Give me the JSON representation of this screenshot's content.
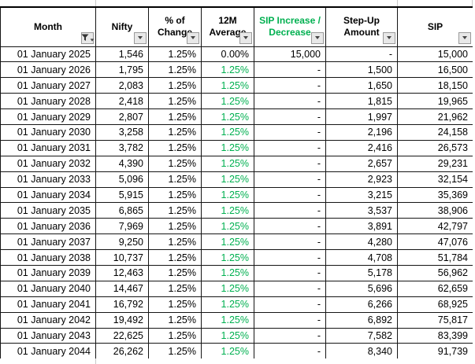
{
  "colors": {
    "yellow": "#FFFF00",
    "green": "#92D050",
    "good_bg": "#C6EFCE",
    "good_text": "#00B050",
    "accent_text": "#00B050",
    "grid_border": "#151515"
  },
  "table": {
    "columns": [
      {
        "id": "month",
        "label_lines": [
          "Month"
        ],
        "filtered": true,
        "accent": false
      },
      {
        "id": "nifty",
        "label_lines": [
          "Nifty"
        ],
        "filtered": false,
        "accent": false
      },
      {
        "id": "pct_change",
        "label_lines": [
          "% of",
          "Change"
        ],
        "filtered": false,
        "accent": false
      },
      {
        "id": "avg_12m",
        "label_lines": [
          "12M",
          "Average"
        ],
        "filtered": false,
        "accent": false
      },
      {
        "id": "sip_inc_dec",
        "label_lines": [
          "SIP Increase /",
          "Decrease"
        ],
        "filtered": false,
        "accent": true
      },
      {
        "id": "step_up",
        "label_lines": [
          "Step-Up",
          "Amount"
        ],
        "filtered": false,
        "accent": false
      },
      {
        "id": "sip",
        "label_lines": [
          "SIP"
        ],
        "filtered": false,
        "accent": false
      }
    ],
    "rows": [
      {
        "month": "01 January 2025",
        "nifty": "1,546",
        "pct_change": "1.25%",
        "avg_12m": "0.00%",
        "avg_good": false,
        "sip_inc_dec": "15,000",
        "step_up": "-",
        "step_up_bg": "yellow",
        "sip": "15,000"
      },
      {
        "month": "01 January 2026",
        "nifty": "1,795",
        "pct_change": "1.25%",
        "avg_12m": "1.25%",
        "avg_good": true,
        "sip_inc_dec": "-",
        "step_up": "1,500",
        "step_up_bg": "yellow",
        "sip": "16,500"
      },
      {
        "month": "01 January 2027",
        "nifty": "2,083",
        "pct_change": "1.25%",
        "avg_12m": "1.25%",
        "avg_good": true,
        "sip_inc_dec": "-",
        "step_up": "1,650",
        "step_up_bg": "yellow",
        "sip": "18,150"
      },
      {
        "month": "01 January 2028",
        "nifty": "2,418",
        "pct_change": "1.25%",
        "avg_12m": "1.25%",
        "avg_good": true,
        "sip_inc_dec": "-",
        "step_up": "1,815",
        "step_up_bg": "green",
        "sip": "19,965"
      },
      {
        "month": "01 January 2029",
        "nifty": "2,807",
        "pct_change": "1.25%",
        "avg_12m": "1.25%",
        "avg_good": true,
        "sip_inc_dec": "-",
        "step_up": "1,997",
        "step_up_bg": "green",
        "sip": "21,962"
      },
      {
        "month": "01 January 2030",
        "nifty": "3,258",
        "pct_change": "1.25%",
        "avg_12m": "1.25%",
        "avg_good": true,
        "sip_inc_dec": "-",
        "step_up": "2,196",
        "step_up_bg": "green",
        "sip": "24,158"
      },
      {
        "month": "01 January 2031",
        "nifty": "3,782",
        "pct_change": "1.25%",
        "avg_12m": "1.25%",
        "avg_good": true,
        "sip_inc_dec": "-",
        "step_up": "2,416",
        "step_up_bg": "green",
        "sip": "26,573"
      },
      {
        "month": "01 January 2032",
        "nifty": "4,390",
        "pct_change": "1.25%",
        "avg_12m": "1.25%",
        "avg_good": true,
        "sip_inc_dec": "-",
        "step_up": "2,657",
        "step_up_bg": "green",
        "sip": "29,231"
      },
      {
        "month": "01 January 2033",
        "nifty": "5,096",
        "pct_change": "1.25%",
        "avg_12m": "1.25%",
        "avg_good": true,
        "sip_inc_dec": "-",
        "step_up": "2,923",
        "step_up_bg": "green",
        "sip": "32,154"
      },
      {
        "month": "01 January 2034",
        "nifty": "5,915",
        "pct_change": "1.25%",
        "avg_12m": "1.25%",
        "avg_good": true,
        "sip_inc_dec": "-",
        "step_up": "3,215",
        "step_up_bg": "green",
        "sip": "35,369"
      },
      {
        "month": "01 January 2035",
        "nifty": "6,865",
        "pct_change": "1.25%",
        "avg_12m": "1.25%",
        "avg_good": true,
        "sip_inc_dec": "-",
        "step_up": "3,537",
        "step_up_bg": "green",
        "sip": "38,906"
      },
      {
        "month": "01 January 2036",
        "nifty": "7,969",
        "pct_change": "1.25%",
        "avg_12m": "1.25%",
        "avg_good": true,
        "sip_inc_dec": "-",
        "step_up": "3,891",
        "step_up_bg": "green",
        "sip": "42,797"
      },
      {
        "month": "01 January 2037",
        "nifty": "9,250",
        "pct_change": "1.25%",
        "avg_12m": "1.25%",
        "avg_good": true,
        "sip_inc_dec": "-",
        "step_up": "4,280",
        "step_up_bg": "green",
        "sip": "47,076"
      },
      {
        "month": "01 January 2038",
        "nifty": "10,737",
        "pct_change": "1.25%",
        "avg_12m": "1.25%",
        "avg_good": true,
        "sip_inc_dec": "-",
        "step_up": "4,708",
        "step_up_bg": "green",
        "sip": "51,784"
      },
      {
        "month": "01 January 2039",
        "nifty": "12,463",
        "pct_change": "1.25%",
        "avg_12m": "1.25%",
        "avg_good": true,
        "sip_inc_dec": "-",
        "step_up": "5,178",
        "step_up_bg": "green",
        "sip": "56,962"
      },
      {
        "month": "01 January 2040",
        "nifty": "14,467",
        "pct_change": "1.25%",
        "avg_12m": "1.25%",
        "avg_good": true,
        "sip_inc_dec": "-",
        "step_up": "5,696",
        "step_up_bg": "green",
        "sip": "62,659"
      },
      {
        "month": "01 January 2041",
        "nifty": "16,792",
        "pct_change": "1.25%",
        "avg_12m": "1.25%",
        "avg_good": true,
        "sip_inc_dec": "-",
        "step_up": "6,266",
        "step_up_bg": "green",
        "sip": "68,925"
      },
      {
        "month": "01 January 2042",
        "nifty": "19,492",
        "pct_change": "1.25%",
        "avg_12m": "1.25%",
        "avg_good": true,
        "sip_inc_dec": "-",
        "step_up": "6,892",
        "step_up_bg": "green",
        "sip": "75,817"
      },
      {
        "month": "01 January 2043",
        "nifty": "22,625",
        "pct_change": "1.25%",
        "avg_12m": "1.25%",
        "avg_good": true,
        "sip_inc_dec": "-",
        "step_up": "7,582",
        "step_up_bg": "green",
        "sip": "83,399"
      },
      {
        "month": "01 January 2044",
        "nifty": "26,262",
        "pct_change": "1.25%",
        "avg_12m": "1.25%",
        "avg_good": true,
        "sip_inc_dec": "-",
        "step_up": "8,340",
        "step_up_bg": "green",
        "sip": "91,739"
      }
    ]
  }
}
